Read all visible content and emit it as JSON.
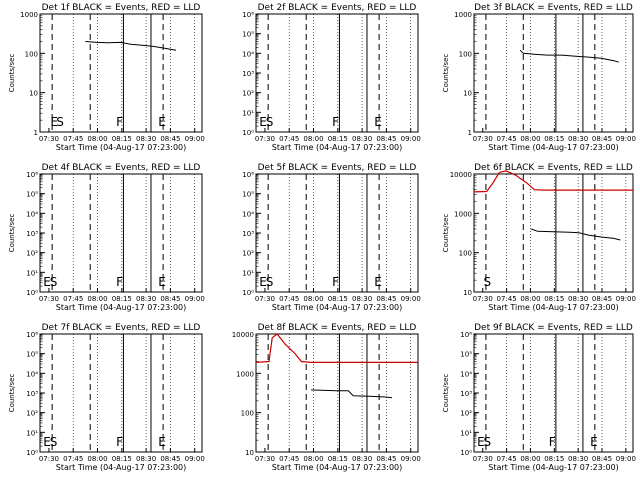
{
  "chart_data": [
    {
      "type": "line",
      "title": "Det 1f BLACK = Events, RED = LLD",
      "xlabel": "Start Time (04-Aug-17 07:23:00)",
      "ylabel": "Counts/sec",
      "yscale": "log",
      "ylim": [
        1,
        1000
      ],
      "y_tick_labels": [
        "1",
        "10",
        "100",
        "1000"
      ],
      "x_tick_labels": [
        "07:30",
        "07:45",
        "08:00",
        "08:15",
        "08:30",
        "08:45",
        "09:00"
      ],
      "flags": [
        {
          "label": "E",
          "x": 0.064
        },
        {
          "label": "S",
          "x": 0.1
        },
        {
          "label": "F",
          "x": 0.47
        },
        {
          "label": "E",
          "x": 0.73
        }
      ],
      "series": [
        {
          "color": "#000000",
          "points": [
            [
              0.28,
              200
            ],
            [
              0.35,
              190
            ],
            [
              0.42,
              185
            ],
            [
              0.5,
              190
            ],
            [
              0.56,
              170
            ],
            [
              0.63,
              160
            ],
            [
              0.7,
              150
            ],
            [
              0.77,
              135
            ],
            [
              0.84,
              120
            ]
          ]
        }
      ]
    },
    {
      "type": "line",
      "title": "Det 2f BLACK = Events, RED = LLD",
      "xlabel": "Start Time (04-Aug-17 07:23:00)",
      "ylabel": "",
      "yscale": "log",
      "ylim": [
        1,
        1000000.0
      ],
      "y_tick_labels": [
        "10⁰",
        "10¹",
        "10²",
        "10³",
        "10⁴",
        "10⁵",
        "10⁶"
      ],
      "x_tick_labels": [
        "07:30",
        "07:45",
        "08:00",
        "08:15",
        "08:30",
        "08:45",
        "09:00"
      ],
      "flags": [
        {
          "label": "E",
          "x": 0.02
        },
        {
          "label": "S",
          "x": 0.06
        },
        {
          "label": "F",
          "x": 0.47
        },
        {
          "label": "E",
          "x": 0.73
        }
      ],
      "series": []
    },
    {
      "type": "line",
      "title": "Det 3f BLACK = Events, RED = LLD",
      "xlabel": "Start Time (04-Aug-17 07:23:00)",
      "ylabel": "Counts/sec",
      "yscale": "log",
      "ylim": [
        1,
        1000
      ],
      "y_tick_labels": [
        "1",
        "10",
        "100",
        "1000"
      ],
      "x_tick_labels": [
        "07:30",
        "07:45",
        "08:00",
        "08:15",
        "08:30",
        "08:45",
        "09:00"
      ],
      "flags": [],
      "series": [
        {
          "color": "#000000",
          "points": [
            [
              0.29,
              120
            ],
            [
              0.31,
              100
            ],
            [
              0.38,
              95
            ],
            [
              0.46,
              90
            ],
            [
              0.55,
              90
            ],
            [
              0.63,
              85
            ],
            [
              0.72,
              80
            ],
            [
              0.8,
              75
            ],
            [
              0.88,
              65
            ],
            [
              0.91,
              60
            ]
          ]
        }
      ]
    },
    {
      "type": "line",
      "title": "Det 4f BLACK = Events, RED = LLD",
      "xlabel": "Start Time (04-Aug-17 07:23:00)",
      "ylabel": "Counts/sec",
      "yscale": "log",
      "ylim": [
        1,
        1000000.0
      ],
      "y_tick_labels": [
        "10⁰",
        "10¹",
        "10²",
        "10³",
        "10⁴",
        "10⁵",
        "10⁶"
      ],
      "x_tick_labels": [
        "07:30",
        "07:45",
        "08:00",
        "08:15",
        "08:30",
        "08:45",
        "09:00"
      ],
      "flags": [
        {
          "label": "E",
          "x": 0.02
        },
        {
          "label": "S",
          "x": 0.06
        },
        {
          "label": "F",
          "x": 0.47
        },
        {
          "label": "E",
          "x": 0.73
        }
      ],
      "series": []
    },
    {
      "type": "line",
      "title": "Det 5f BLACK = Events, RED = LLD",
      "xlabel": "Start Time (04-Aug-17 07:23:00)",
      "ylabel": "",
      "yscale": "log",
      "ylim": [
        1,
        1000000.0
      ],
      "y_tick_labels": [
        "10⁰",
        "10¹",
        "10²",
        "10³",
        "10⁴",
        "10⁵",
        "10⁶"
      ],
      "x_tick_labels": [
        "07:30",
        "07:45",
        "08:00",
        "08:15",
        "08:30",
        "08:45",
        "09:00"
      ],
      "flags": [
        {
          "label": "E",
          "x": 0.02
        },
        {
          "label": "S",
          "x": 0.06
        },
        {
          "label": "F",
          "x": 0.47
        },
        {
          "label": "E",
          "x": 0.73
        }
      ],
      "series": []
    },
    {
      "type": "line",
      "title": "Det 6f BLACK = Events, RED = LLD",
      "xlabel": "Start Time (04-Aug-17 07:23:00)",
      "ylabel": "Counts/sec",
      "yscale": "log",
      "ylim": [
        10,
        10000
      ],
      "y_tick_labels": [
        "10",
        "100",
        "1000",
        "10000"
      ],
      "x_tick_labels": [
        "07:30",
        "07:45",
        "08:00",
        "08:15",
        "08:30",
        "08:45",
        "09:00"
      ],
      "flags": [
        {
          "label": "S",
          "x": 0.06
        }
      ],
      "series": [
        {
          "color": "#cc0000",
          "points": [
            [
              0.0,
              3500
            ],
            [
              0.08,
              3600
            ],
            [
              0.12,
              6000
            ],
            [
              0.16,
              11000
            ],
            [
              0.2,
              12000
            ],
            [
              0.26,
              9500
            ],
            [
              0.33,
              6000
            ],
            [
              0.38,
              4000
            ],
            [
              0.45,
              3900
            ],
            [
              0.6,
              3900
            ],
            [
              0.8,
              3900
            ],
            [
              1.0,
              3900
            ]
          ]
        },
        {
          "color": "#000000",
          "points": [
            [
              0.36,
              400
            ],
            [
              0.4,
              350
            ],
            [
              0.5,
              340
            ],
            [
              0.6,
              330
            ],
            [
              0.66,
              320
            ],
            [
              0.72,
              280
            ],
            [
              0.8,
              250
            ],
            [
              0.88,
              230
            ],
            [
              0.92,
              210
            ]
          ]
        }
      ]
    },
    {
      "type": "line",
      "title": "Det 7f BLACK = Events, RED = LLD",
      "xlabel": "Start Time (04-Aug-17 07:23:00)",
      "ylabel": "Counts/sec",
      "yscale": "log",
      "ylim": [
        1,
        1000000.0
      ],
      "y_tick_labels": [
        "10⁰",
        "10¹",
        "10²",
        "10³",
        "10⁴",
        "10⁵",
        "10⁶"
      ],
      "x_tick_labels": [
        "07:30",
        "07:45",
        "08:00",
        "08:15",
        "08:30",
        "08:45",
        "09:00"
      ],
      "flags": [
        {
          "label": "E",
          "x": 0.02
        },
        {
          "label": "S",
          "x": 0.06
        },
        {
          "label": "F",
          "x": 0.47
        },
        {
          "label": "E",
          "x": 0.73
        }
      ],
      "series": []
    },
    {
      "type": "line",
      "title": "Det 8f BLACK = Events, RED = LLD",
      "xlabel": "Start Time (04-Aug-17 07:23:00)",
      "ylabel": "",
      "yscale": "log",
      "ylim": [
        10,
        10000
      ],
      "y_tick_labels": [
        "10",
        "100",
        "1000",
        "10000"
      ],
      "x_tick_labels": [
        "07:30",
        "07:45",
        "08:00",
        "08:15",
        "08:30",
        "08:45",
        "09:00"
      ],
      "flags": [],
      "series": [
        {
          "color": "#cc0000",
          "points": [
            [
              0.0,
              1900
            ],
            [
              0.08,
              2000
            ],
            [
              0.1,
              8000
            ],
            [
              0.13,
              10000
            ],
            [
              0.18,
              5500
            ],
            [
              0.24,
              3200
            ],
            [
              0.28,
              2000
            ],
            [
              0.34,
              1900
            ],
            [
              0.5,
              1900
            ],
            [
              0.7,
              1900
            ],
            [
              0.9,
              1900
            ],
            [
              1.0,
              1900
            ]
          ]
        },
        {
          "color": "#000000",
          "points": [
            [
              0.34,
              380
            ],
            [
              0.4,
              370
            ],
            [
              0.5,
              360
            ],
            [
              0.57,
              360
            ],
            [
              0.6,
              270
            ],
            [
              0.7,
              260
            ],
            [
              0.8,
              250
            ],
            [
              0.84,
              240
            ]
          ]
        }
      ]
    },
    {
      "type": "line",
      "title": "Det 9f BLACK = Events, RED = LLD",
      "xlabel": "Start Time (04-Aug-17 07:23:00)",
      "ylabel": "Counts/sec",
      "yscale": "log",
      "ylim": [
        1,
        1000000.0
      ],
      "y_tick_labels": [
        "10⁰",
        "10¹",
        "10²",
        "10³",
        "10⁴",
        "10⁵",
        "10⁶"
      ],
      "x_tick_labels": [
        "07:30",
        "07:45",
        "08:00",
        "08:15",
        "08:30",
        "08:45",
        "09:00"
      ],
      "flags": [
        {
          "label": "E",
          "x": 0.02
        },
        {
          "label": "S",
          "x": 0.06
        },
        {
          "label": "F",
          "x": 0.47
        },
        {
          "label": "E",
          "x": 0.73
        }
      ],
      "series": []
    }
  ]
}
